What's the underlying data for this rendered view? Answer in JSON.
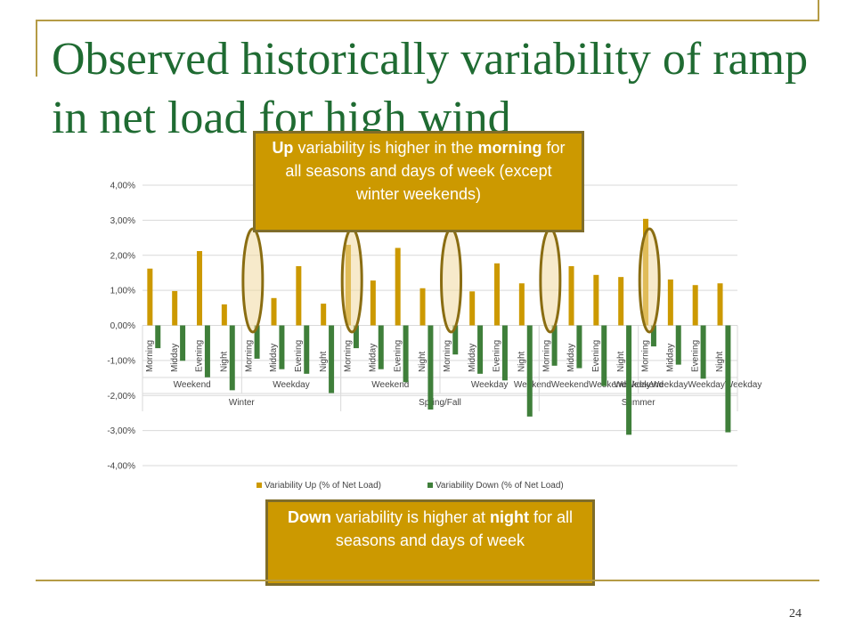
{
  "slide": {
    "title": "Observed historically variability of ramp in net load for high wind",
    "page_number": "24"
  },
  "callouts": {
    "up": [
      {
        "text": "Up",
        "bold": true
      },
      {
        "text": " variability is higher in the ",
        "bold": false
      },
      {
        "text": "morning",
        "bold": true
      },
      {
        "text": " for all seasons and days of week (except winter weekends)",
        "bold": false
      }
    ],
    "down": [
      {
        "text": "Down",
        "bold": true
      },
      {
        "text": " variability is higher at ",
        "bold": false
      },
      {
        "text": "night",
        "bold": true
      },
      {
        "text": " for all seasons and days of week",
        "bold": false
      }
    ]
  },
  "colors": {
    "up": "#cc9900",
    "down": "#3f7f3a",
    "title": "#1f6b32",
    "gridline": "#d9d9d9",
    "highlight_fill": "#f0d9a0",
    "highlight_stroke": "#8a6d12"
  },
  "chart_data": {
    "type": "bar",
    "ylim": [
      -0.04,
      0.04
    ],
    "y_ticks": [
      {
        "value": 0.04,
        "label": "4,00%"
      },
      {
        "value": 0.03,
        "label": "3,00%"
      },
      {
        "value": 0.02,
        "label": "2,00%"
      },
      {
        "value": 0.01,
        "label": "1,00%"
      },
      {
        "value": 0.0,
        "label": "0,00%"
      },
      {
        "value": -0.01,
        "label": "-1,00%"
      },
      {
        "value": -0.02,
        "label": "-2,00%"
      },
      {
        "value": -0.03,
        "label": "-3,00%"
      },
      {
        "value": -0.04,
        "label": "-4,00%"
      }
    ],
    "categories": [
      "Morning",
      "Midday",
      "Evening",
      "Night",
      "Morning",
      "Midday",
      "Evening",
      "Night",
      "Morning",
      "Midday",
      "Evening",
      "Night",
      "Morning",
      "Midday",
      "Evening",
      "Night",
      "Morning",
      "Midday",
      "Evening",
      "Night",
      "Morning",
      "Midday",
      "Evening",
      "Night"
    ],
    "day_groups": [
      {
        "label": "Weekend",
        "count": 4
      },
      {
        "label": "Weekday",
        "count": 4
      },
      {
        "label": "Weekend",
        "count": 4
      },
      {
        "label": "Weekday",
        "count": 4
      },
      {
        "label": "WeekendWeekendWeekendWeekend",
        "count": 4
      },
      {
        "label": "WeekdayWeekdayWeekdayWeekday",
        "count": 4
      }
    ],
    "season_groups": [
      {
        "label": "Winter",
        "count": 8
      },
      {
        "label": "Spring/Fall",
        "count": 8
      },
      {
        "label": "Summer",
        "count": 8
      }
    ],
    "series": [
      {
        "name": "Variability Up (% of Net Load)",
        "values": [
          0.0162,
          0.0098,
          0.0212,
          0.006,
          0.0,
          0.0078,
          0.0169,
          0.0062,
          0.023,
          0.0128,
          0.0221,
          0.0106,
          0.0,
          0.0097,
          0.0177,
          0.012,
          0.0,
          0.0169,
          0.0144,
          0.0138,
          0.0304,
          0.0131,
          0.0115,
          0.012
        ]
      },
      {
        "name": "Variability Down (% of Net Load)",
        "values": [
          -0.0065,
          -0.0101,
          -0.0148,
          -0.0185,
          -0.0095,
          -0.0125,
          -0.0138,
          -0.0193,
          -0.0065,
          -0.0125,
          -0.0162,
          -0.024,
          -0.0083,
          -0.0138,
          -0.0157,
          -0.026,
          -0.0115,
          -0.0122,
          -0.0173,
          -0.0312,
          -0.006,
          -0.0112,
          -0.0152,
          -0.0305
        ]
      }
    ],
    "highlighted_categories": [
      4,
      8,
      12,
      16,
      20
    ],
    "legend_position": "bottom"
  }
}
